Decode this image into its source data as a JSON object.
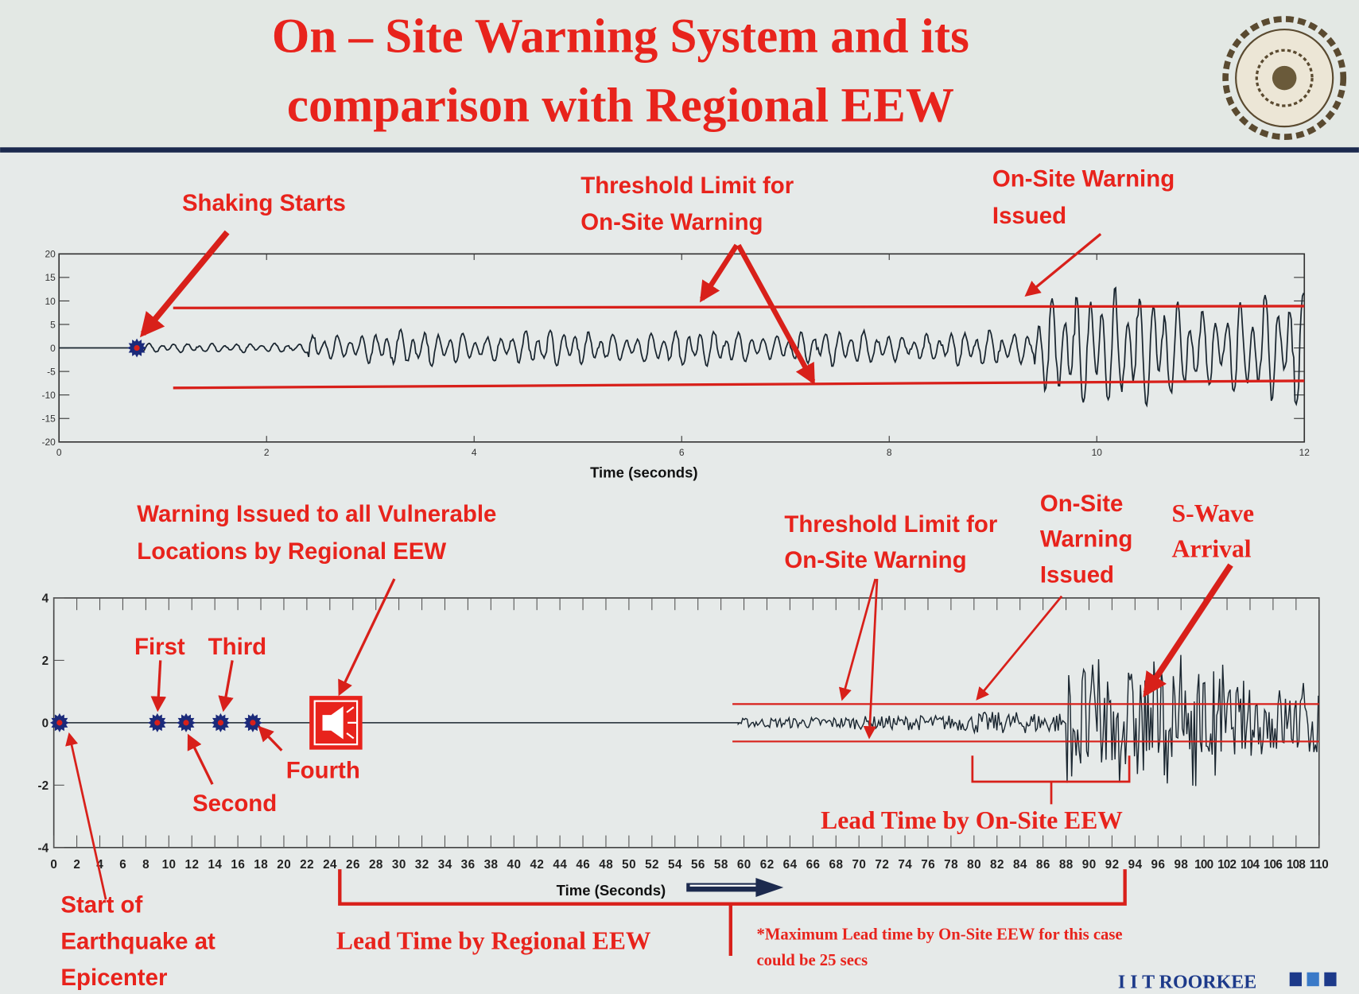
{
  "title": {
    "line1": "On – Site Warning System and its",
    "line2": "comparison with Regional EEW"
  },
  "logo": {
    "text": "INDIAN INSTITUTE OF TECHNOLOGY ROORKEE"
  },
  "footer": {
    "brand": "I I T ROORKEE"
  },
  "colors": {
    "accent_red": "#e8231c",
    "trace": "#1a2630",
    "marker": "#1b2a7a",
    "brand_blue": "#1d3a8a"
  },
  "top_annotations": {
    "shaking_starts": "Shaking Starts",
    "threshold_1": "Threshold Limit for",
    "threshold_2": "On-Site Warning",
    "issued_1": "On-Site Warning",
    "issued_2": "Issued"
  },
  "bottom_annotations": {
    "regional_1": "Warning Issued to all Vulnerable",
    "regional_2": "Locations by Regional EEW",
    "first": "First",
    "second": "Second",
    "third": "Third",
    "fourth": "Fourth",
    "start_1": "Start of",
    "start_2": "Earthquake at",
    "start_3": "Epicenter",
    "threshold_1": "Threshold Limit for",
    "threshold_2": "On-Site Warning",
    "onsite_1": "On-Site",
    "onsite_2": "Warning",
    "onsite_3": "Issued",
    "swave_1": "S-Wave",
    "swave_2": "Arrival",
    "lead_onsite": "Lead Time by On-Site EEW",
    "lead_regional": "Lead Time by Regional EEW",
    "note_1": "*Maximum Lead time by On-Site EEW for this case",
    "note_2": "could be 25 secs"
  },
  "chart_data": [
    {
      "type": "line",
      "xlabel": "Time (seconds)",
      "ylabel": "",
      "xlim": [
        0,
        12
      ],
      "ylim": [
        -20,
        20
      ],
      "xticks": [
        0,
        2,
        4,
        6,
        8,
        10,
        12
      ],
      "yticks": [
        20,
        15,
        10,
        5,
        0,
        -5,
        -10,
        -15,
        -20
      ],
      "thresholds": [
        8.5,
        -8.5
      ],
      "shaking_start": 0.75,
      "onsite_warning_time": 9.4,
      "grid": false
    },
    {
      "type": "line",
      "xlabel": "Time (Seconds)",
      "ylabel": "",
      "xlim": [
        0,
        110
      ],
      "ylim": [
        -4,
        4
      ],
      "xticks": [
        0,
        2,
        4,
        6,
        8,
        10,
        12,
        14,
        16,
        18,
        20,
        22,
        24,
        26,
        28,
        30,
        32,
        34,
        36,
        38,
        40,
        42,
        44,
        46,
        48,
        50,
        52,
        54,
        56,
        58,
        60,
        62,
        64,
        66,
        68,
        70,
        72,
        74,
        76,
        78,
        80,
        82,
        84,
        86,
        88,
        90,
        92,
        94,
        96,
        98,
        100,
        102,
        104,
        106,
        108,
        110
      ],
      "yticks": [
        4,
        2,
        0,
        -2,
        -4
      ],
      "thresholds": [
        0.6,
        -0.6
      ],
      "station_triggers": [
        0.5,
        9,
        11.5,
        14.5,
        17.3
      ],
      "regional_warning_time": 24,
      "onsite_warning_time": 80,
      "s_wave_arrival": 94,
      "grid": false
    }
  ]
}
